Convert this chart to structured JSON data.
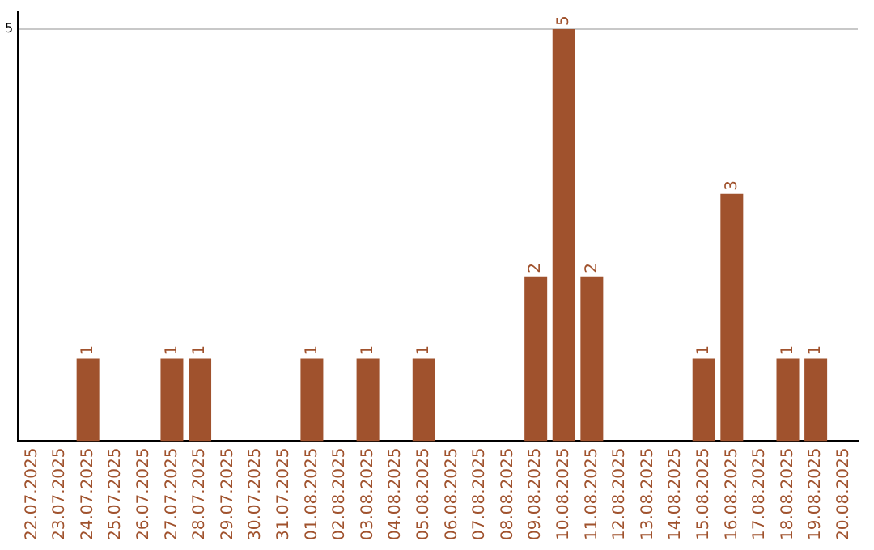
{
  "chart_data": {
    "type": "bar",
    "categories": [
      "22.07.2025",
      "23.07.2025",
      "24.07.2025",
      "25.07.2025",
      "26.07.2025",
      "27.07.2025",
      "28.07.2025",
      "29.07.2025",
      "30.07.2025",
      "31.07.2025",
      "01.08.2025",
      "02.08.2025",
      "03.08.2025",
      "04.08.2025",
      "05.08.2025",
      "06.08.2025",
      "07.08.2025",
      "08.08.2025",
      "09.08.2025",
      "10.08.2025",
      "11.08.2025",
      "12.08.2025",
      "13.08.2025",
      "14.08.2025",
      "15.08.2025",
      "16.08.2025",
      "17.08.2025",
      "18.08.2025",
      "19.08.2025",
      "20.08.2025"
    ],
    "values": [
      0,
      0,
      1,
      0,
      0,
      1,
      1,
      0,
      0,
      0,
      1,
      0,
      1,
      0,
      1,
      0,
      0,
      0,
      2,
      5,
      2,
      0,
      0,
      0,
      1,
      3,
      0,
      1,
      1,
      0
    ],
    "value_labels": [
      null,
      null,
      "1",
      null,
      null,
      "1",
      "1",
      null,
      null,
      null,
      "1",
      null,
      "1",
      null,
      "1",
      null,
      null,
      null,
      "2",
      "5",
      "2",
      null,
      null,
      null,
      "1",
      "3",
      null,
      "1",
      "1",
      null
    ],
    "color": "#a0522d",
    "ylim": [
      0,
      5.2
    ],
    "yticks": [
      5
    ],
    "grid": "y",
    "legend": false
  }
}
